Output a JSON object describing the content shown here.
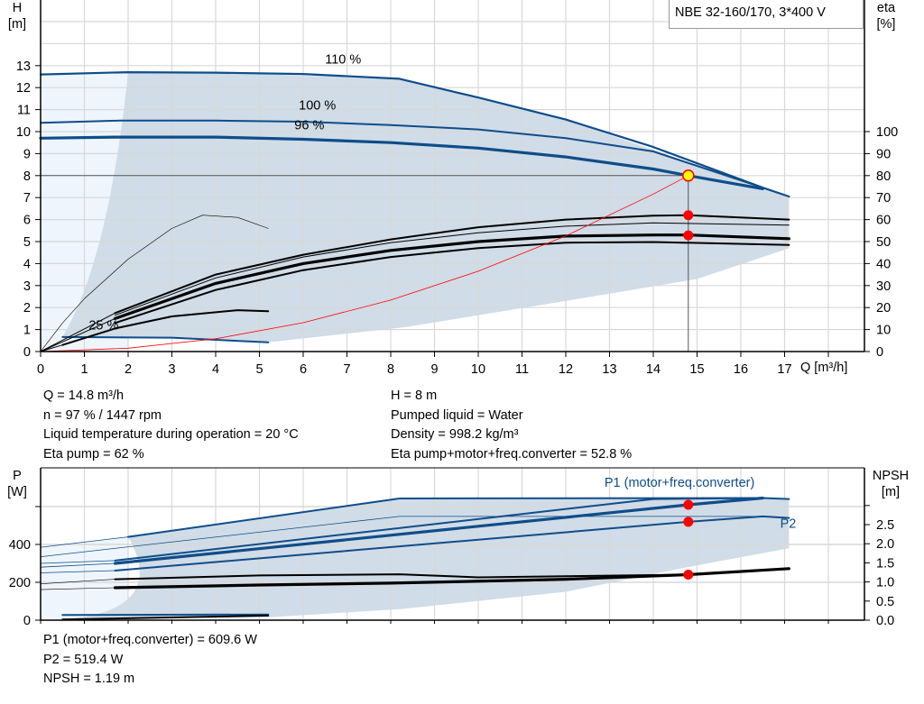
{
  "product_label": "NBE 32-160/170, 3*400 V",
  "operating_info": {
    "left": [
      "Q = 14.8 m³/h",
      "n = 97 % / 1447 rpm",
      "Liquid temperature during operation = 20 °C",
      "Eta pump = 62 %"
    ],
    "right": [
      "H = 8 m",
      "Pumped liquid = Water",
      "Density = 998.2 kg/m³",
      "Eta pump+motor+freq.converter = 52.8 %"
    ]
  },
  "power_info": [
    "P1 (motor+freq.converter) = 609.6 W",
    "P2 = 519.4 W",
    "NPSH = 1.19 m"
  ],
  "colors": {
    "curve_blue": "#0e4d8a",
    "area": "#d0dce7",
    "area_light": "#eef5fc",
    "grid": "#d8d8d8",
    "op_point": "#ff0000",
    "duty_point_fill": "#ffff00",
    "system_curve": "#ff0000"
  },
  "chart_data": [
    {
      "type": "line",
      "title": "",
      "x_axis": {
        "label": "Q [m³/h]",
        "range": [
          0,
          18.8
        ],
        "ticks": [
          0,
          1,
          2,
          3,
          4,
          5,
          6,
          7,
          8,
          9,
          10,
          11,
          12,
          13,
          14,
          15,
          16,
          17
        ]
      },
      "y_axis_left": {
        "label_top": "H",
        "label_unit": "[m]",
        "range": [
          0,
          16
        ],
        "ticks": [
          0,
          1,
          2,
          3,
          4,
          5,
          6,
          7,
          8,
          9,
          10,
          11,
          12,
          13
        ]
      },
      "y_axis_right": {
        "label_top": "eta",
        "label_unit": "[%]",
        "range": [
          0,
          160
        ],
        "ticks": [
          0,
          10,
          20,
          30,
          40,
          50,
          60,
          70,
          80,
          90,
          100
        ]
      },
      "grid": true,
      "curve_labels": [
        {
          "text": "110 %",
          "x": 6.5,
          "y": 13.1
        },
        {
          "text": "100 %",
          "x": 5.9,
          "y": 11.0
        },
        {
          "text": "96 %",
          "x": 5.8,
          "y": 10.1
        },
        {
          "text": "25 %",
          "x": 1.1,
          "y": 1.0
        }
      ],
      "series": [
        {
          "axis": "H",
          "style": "blue",
          "points": [
            [
              0,
              12.6
            ],
            [
              2,
              12.7
            ],
            [
              4,
              12.68
            ],
            [
              6,
              12.62
            ],
            [
              8.2,
              12.4
            ],
            [
              10,
              11.55
            ],
            [
              12,
              10.55
            ],
            [
              14,
              9.3
            ],
            [
              16.5,
              7.45
            ],
            [
              17.1,
              7.05
            ]
          ]
        },
        {
          "axis": "H",
          "style": "blue-mid",
          "points": [
            [
              0,
              10.4
            ],
            [
              1.8,
              10.5
            ],
            [
              4,
              10.5
            ],
            [
              6,
              10.45
            ],
            [
              8,
              10.3
            ],
            [
              10,
              10.1
            ],
            [
              12,
              9.7
            ],
            [
              14,
              9.1
            ],
            [
              16.5,
              7.45
            ]
          ]
        },
        {
          "axis": "H",
          "style": "blue-thick",
          "points": [
            [
              0,
              9.7
            ],
            [
              1.7,
              9.75
            ],
            [
              4,
              9.75
            ],
            [
              6,
              9.65
            ],
            [
              8,
              9.5
            ],
            [
              10,
              9.25
            ],
            [
              12,
              8.85
            ],
            [
              14,
              8.3
            ],
            [
              14.8,
              8.0
            ],
            [
              16.5,
              7.4
            ]
          ]
        },
        {
          "axis": "H",
          "style": "blue-mid",
          "points": [
            [
              0.5,
              0.66
            ],
            [
              3,
              0.63
            ],
            [
              5.2,
              0.42
            ]
          ]
        },
        {
          "axis": "eta",
          "style": "black-mid",
          "points": [
            [
              1.7,
              17.5
            ],
            [
              4,
              35
            ],
            [
              6,
              44
            ],
            [
              8,
              51
            ],
            [
              10,
              56.5
            ],
            [
              12,
              60
            ],
            [
              14,
              61.8
            ],
            [
              14.8,
              62
            ],
            [
              17.1,
              60
            ]
          ]
        },
        {
          "axis": "eta",
          "style": "black-thin",
          "points": [
            [
              1.7,
              16.5
            ],
            [
              4,
              33.5
            ],
            [
              6,
              43
            ],
            [
              8,
              49.5
            ],
            [
              10,
              54
            ],
            [
              12,
              57
            ],
            [
              14,
              58.5
            ],
            [
              17.1,
              57.5
            ]
          ]
        },
        {
          "axis": "eta",
          "style": "black-thick",
          "points": [
            [
              1.7,
              15
            ],
            [
              4,
              31
            ],
            [
              6,
              40
            ],
            [
              8,
              46
            ],
            [
              10,
              50
            ],
            [
              12,
              52.5
            ],
            [
              14,
              53
            ],
            [
              14.8,
              53
            ],
            [
              17.1,
              51.3
            ]
          ]
        },
        {
          "axis": "eta",
          "style": "black-mid",
          "points": [
            [
              1.7,
              13
            ],
            [
              4,
              28
            ],
            [
              6,
              37
            ],
            [
              8,
              43
            ],
            [
              10,
              47
            ],
            [
              12,
              49.5
            ],
            [
              14,
              49.8
            ],
            [
              17.1,
              48.5
            ]
          ]
        },
        {
          "axis": "eta",
          "style": "black-hair",
          "points": [
            [
              0,
              0
            ],
            [
              0.5,
              13
            ],
            [
              1,
              24
            ],
            [
              2,
              42
            ],
            [
              3,
              56
            ],
            [
              3.7,
              62
            ],
            [
              4.5,
              61
            ],
            [
              5.2,
              56
            ]
          ]
        },
        {
          "axis": "eta",
          "style": "black-mid",
          "points": [
            [
              0.5,
              3
            ],
            [
              1.7,
              10.5
            ],
            [
              3,
              16
            ],
            [
              4.5,
              18.8
            ],
            [
              5.2,
              18.3
            ]
          ]
        },
        {
          "axis": "eta",
          "style": "black-thin",
          "points": [
            [
              0,
              0
            ],
            [
              1.7,
              17.5
            ]
          ]
        },
        {
          "axis": "eta",
          "style": "black-thin",
          "points": [
            [
              0,
              0
            ],
            [
              1.7,
              15
            ]
          ]
        },
        {
          "axis": "eta",
          "style": "black-thin",
          "points": [
            [
              0,
              0
            ],
            [
              0.5,
              3
            ]
          ]
        },
        {
          "axis": "H",
          "style": "system",
          "points": [
            [
              0,
              0
            ],
            [
              2,
              0.15
            ],
            [
              4,
              0.58
            ],
            [
              6,
              1.31
            ],
            [
              8,
              2.34
            ],
            [
              10,
              3.65
            ],
            [
              12,
              5.26
            ],
            [
              14,
              7.16
            ],
            [
              14.8,
              8.0
            ]
          ]
        }
      ],
      "operating_points": [
        {
          "axis": "H",
          "x": 14.8,
          "y": 8.0,
          "kind": "duty"
        },
        {
          "axis": "eta",
          "x": 14.8,
          "y": 62
        },
        {
          "axis": "eta",
          "x": 14.8,
          "y": 52.8
        }
      ]
    },
    {
      "type": "line",
      "x_axis": {
        "range": [
          0,
          18.8
        ]
      },
      "y_axis_left": {
        "label_top": "P",
        "label_unit": "[W]",
        "range": [
          0,
          800
        ],
        "ticks": [
          0,
          200,
          400,
          600
        ],
        "tick_labels": [
          "0",
          "200",
          "400",
          ""
        ]
      },
      "y_axis_right": {
        "label_top": "NPSH",
        "label_unit": "[m]",
        "range": [
          0,
          3.7
        ],
        "ticks": [
          0,
          0.5,
          1,
          1.5,
          2,
          2.5,
          3
        ],
        "tick_labels": [
          "0.0",
          "0.5",
          "1.0",
          "1.5",
          "2.0",
          "2.5",
          ""
        ]
      },
      "grid": true,
      "curve_labels": [
        {
          "text": "P1 (motor+freq.converter)",
          "x": 14.6,
          "y": 705
        },
        {
          "text": "P2",
          "x": 16.9,
          "y": 488
        }
      ],
      "series": [
        {
          "axis": "P",
          "style": "blue-mid",
          "points": [
            [
              2,
              440
            ],
            [
              8.2,
              643
            ],
            [
              16.5,
              645
            ],
            [
              17.1,
              640
            ]
          ]
        },
        {
          "axis": "P",
          "style": "blue-hair",
          "points": [
            [
              0,
              385
            ],
            [
              2,
              440
            ]
          ]
        },
        {
          "axis": "P",
          "style": "blue-hair",
          "points": [
            [
              0,
              335
            ],
            [
              8.2,
              548
            ],
            [
              16.5,
              548
            ]
          ]
        },
        {
          "axis": "P",
          "style": "blue-mid",
          "points": [
            [
              1.7,
              315
            ],
            [
              14,
              640
            ],
            [
              16.5,
              645
            ]
          ]
        },
        {
          "axis": "P",
          "style": "blue-thick",
          "points": [
            [
              1.7,
              300
            ],
            [
              14.8,
              609.6
            ],
            [
              16.5,
              645
            ]
          ]
        },
        {
          "axis": "P",
          "style": "blue-mid",
          "points": [
            [
              1.7,
              262
            ],
            [
              14.8,
              519.4
            ],
            [
              16.5,
              548
            ],
            [
              17.1,
              540
            ]
          ]
        },
        {
          "axis": "P",
          "style": "blue-hair",
          "points": [
            [
              0,
              300
            ],
            [
              1.7,
              315
            ]
          ]
        },
        {
          "axis": "P",
          "style": "blue-hair",
          "points": [
            [
              0,
              280
            ],
            [
              1.7,
              300
            ]
          ]
        },
        {
          "axis": "P",
          "style": "blue-hair",
          "points": [
            [
              0,
              250
            ],
            [
              1.7,
              262
            ]
          ]
        },
        {
          "axis": "P",
          "style": "blue-mid",
          "points": [
            [
              0.5,
              27
            ],
            [
              5.2,
              30
            ]
          ]
        },
        {
          "axis": "NPSH",
          "style": "black-mid",
          "points": [
            [
              1.7,
              1.07
            ],
            [
              5,
              1.17
            ],
            [
              8.2,
              1.2
            ],
            [
              10,
              1.12
            ],
            [
              14.8,
              1.19
            ]
          ]
        },
        {
          "axis": "NPSH",
          "style": "black-thick",
          "points": [
            [
              1.7,
              0.85
            ],
            [
              5,
              0.92
            ],
            [
              8,
              0.97
            ],
            [
              12,
              1.07
            ],
            [
              14.8,
              1.19
            ],
            [
              17.1,
              1.35
            ]
          ]
        },
        {
          "axis": "NPSH",
          "style": "black-hair",
          "points": [
            [
              0,
              0.95
            ],
            [
              1.7,
              1.07
            ]
          ]
        },
        {
          "axis": "NPSH",
          "style": "black-hair",
          "points": [
            [
              0,
              0.8
            ],
            [
              1.7,
              0.85
            ]
          ]
        },
        {
          "axis": "NPSH",
          "style": "black-mid",
          "points": [
            [
              0.5,
              0.02
            ],
            [
              5.2,
              0.12
            ]
          ]
        }
      ],
      "operating_points": [
        {
          "axis": "P",
          "x": 14.8,
          "y": 609.6
        },
        {
          "axis": "P",
          "x": 14.8,
          "y": 519.4
        },
        {
          "axis": "NPSH",
          "x": 14.8,
          "y": 1.19
        }
      ]
    }
  ]
}
